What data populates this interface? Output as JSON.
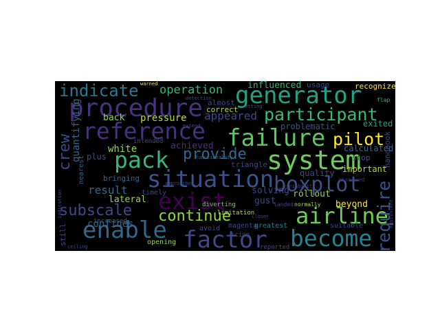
{
  "wordcloud": {
    "background": "#000000",
    "words": [
      {
        "text": "procedure",
        "color": "#46327e"
      },
      {
        "text": "generator",
        "color": "#20a386"
      },
      {
        "text": "reference",
        "color": "#46327e"
      },
      {
        "text": "failure",
        "color": "#5ec962"
      },
      {
        "text": "system",
        "color": "#6ece58"
      },
      {
        "text": "situation",
        "color": "#3b528b"
      },
      {
        "text": "exist",
        "color": "#440154"
      },
      {
        "text": "pack",
        "color": "#35b779"
      },
      {
        "text": "boxplot",
        "color": "#3b528b"
      },
      {
        "text": "enable",
        "color": "#31688e"
      },
      {
        "text": "factor",
        "color": "#3e4989"
      },
      {
        "text": "become",
        "color": "#26828e"
      },
      {
        "text": "airline",
        "color": "#6ece58"
      },
      {
        "text": "participant",
        "color": "#3aba76"
      },
      {
        "text": "indicate",
        "color": "#2a788e"
      },
      {
        "text": "pilot",
        "color": "#fde725"
      },
      {
        "text": "provide",
        "color": "#31688e"
      },
      {
        "text": "continue",
        "color": "#90d743"
      },
      {
        "text": "subscale",
        "color": "#3e4989"
      },
      {
        "text": "require",
        "color": "#3b528b"
      },
      {
        "text": "crew",
        "color": "#3e4989"
      },
      {
        "text": "operation",
        "color": "#35b779"
      },
      {
        "text": "result",
        "color": "#31688e"
      },
      {
        "text": "appeared",
        "color": "#3e4989"
      },
      {
        "text": "pressure",
        "color": "#b5de2b"
      },
      {
        "text": "confines",
        "color": "#31688e"
      },
      {
        "text": "white",
        "color": "#90d743"
      },
      {
        "text": "quantifying",
        "color": "#31688e"
      },
      {
        "text": "influenced",
        "color": "#35b779"
      },
      {
        "text": "achieved",
        "color": "#46327e"
      },
      {
        "text": "lateral",
        "color": "#90d743"
      },
      {
        "text": "gust",
        "color": "#3e4989"
      },
      {
        "text": "beyond",
        "color": "#fde725"
      },
      {
        "text": "rollout",
        "color": "#90d743"
      },
      {
        "text": "solving",
        "color": "#3e4989"
      },
      {
        "text": "back",
        "color": "#90d743"
      },
      {
        "text": "plus",
        "color": "#3e4989"
      },
      {
        "text": "quality",
        "color": "#3e4989"
      },
      {
        "text": "exited",
        "color": "#20a386"
      },
      {
        "text": "problematic",
        "color": "#3b528b"
      },
      {
        "text": "calculated",
        "color": "#31688e"
      },
      {
        "text": "important",
        "color": "#b5de2b"
      },
      {
        "text": "stop",
        "color": "#3b528b"
      },
      {
        "text": "handbook",
        "color": "#3e4989"
      },
      {
        "text": "triangle",
        "color": "#3e4989"
      },
      {
        "text": "almost",
        "color": "#3e4989"
      },
      {
        "text": "correct",
        "color": "#b5de2b"
      },
      {
        "text": "usage",
        "color": "#3e4989"
      },
      {
        "text": "recognized",
        "color": "#fde725"
      },
      {
        "text": "bringing",
        "color": "#31688e"
      },
      {
        "text": "timely",
        "color": "#3e4989"
      },
      {
        "text": "opening",
        "color": "#90d743"
      },
      {
        "text": "avoid",
        "color": "#3e4989"
      },
      {
        "text": "magenta",
        "color": "#3e4989"
      },
      {
        "text": "greatest",
        "color": "#26828e"
      },
      {
        "text": "suitable",
        "color": "#3e4989"
      },
      {
        "text": "still",
        "color": "#3e4989"
      },
      {
        "text": "nearest",
        "color": "#31688e"
      },
      {
        "text": "increased",
        "color": "#31688e"
      },
      {
        "text": "intended",
        "color": "#3e4989"
      },
      {
        "text": "limitation",
        "color": "#b5de2b"
      },
      {
        "text": "reported",
        "color": "#3e4989"
      },
      {
        "text": "diverting",
        "color": "#6ece58"
      },
      {
        "text": "icing",
        "color": "#3e4989"
      },
      {
        "text": "landed",
        "color": "#3e4989"
      },
      {
        "text": "normally",
        "color": "#b5de2b"
      },
      {
        "text": "observed",
        "color": "#46327e"
      },
      {
        "text": "warned",
        "color": "#fde725"
      },
      {
        "text": "detection",
        "color": "#3e4989"
      },
      {
        "text": "flap",
        "color": "#35b779"
      },
      {
        "text": "setting",
        "color": "#3e4989"
      },
      {
        "text": "extend",
        "color": "#3e4989"
      },
      {
        "text": "approached",
        "color": "#3e4989"
      },
      {
        "text": "functionality",
        "color": "#31688e"
      },
      {
        "text": "closer",
        "color": "#3e4989"
      },
      {
        "text": "ceiling",
        "color": "#3e4989"
      },
      {
        "text": "indication",
        "color": "#3e4989"
      },
      {
        "text": "variability",
        "color": "#3e4989"
      },
      {
        "text": "equivalent",
        "color": "#3e4989"
      }
    ]
  }
}
